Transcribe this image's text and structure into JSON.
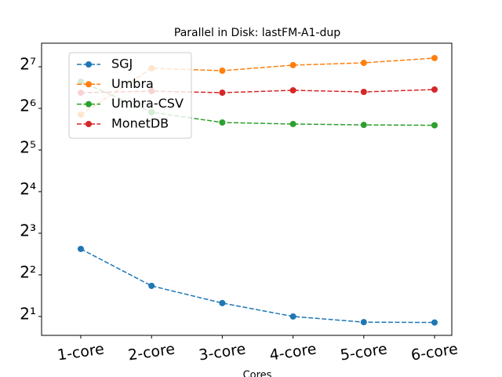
{
  "chart_data": {
    "type": "line",
    "title": "Parallel in Disk: lastFM-A1-dup",
    "x_label": "Cores",
    "categories": [
      "1-core",
      "2-core",
      "3-core",
      "4-core",
      "5-core",
      "6-core"
    ],
    "yscale": "log",
    "ylim": [
      1.46,
      189.5
    ],
    "yticks": [
      {
        "value": 2,
        "label": "2¹"
      },
      {
        "value": 4,
        "label": "2²"
      },
      {
        "value": 8,
        "label": "2³"
      },
      {
        "value": 16,
        "label": "2⁴"
      },
      {
        "value": 32,
        "label": "2⁵"
      },
      {
        "value": 64,
        "label": "2⁶"
      },
      {
        "value": 128,
        "label": "2⁷"
      }
    ],
    "grid": false,
    "legend": "upper left",
    "series": [
      {
        "name": "SGJ",
        "color": "#1f77b4",
        "values": [
          6.16,
          3.33,
          2.5,
          2.0,
          1.82,
          1.81
        ]
      },
      {
        "name": "Umbra",
        "color": "#ff7f0e",
        "values": [
          57.6,
          124.7,
          119.9,
          131.5,
          136.6,
          147.9
        ]
      },
      {
        "name": "Umbra-CSV",
        "color": "#2ca02c",
        "values": [
          99.9,
          60.0,
          50.6,
          49.3,
          48.6,
          48.3
        ]
      },
      {
        "name": "MonetDB",
        "color": "#d62728",
        "values": [
          83.1,
          85.3,
          83.1,
          86.5,
          84.2,
          87.6
        ]
      }
    ]
  }
}
